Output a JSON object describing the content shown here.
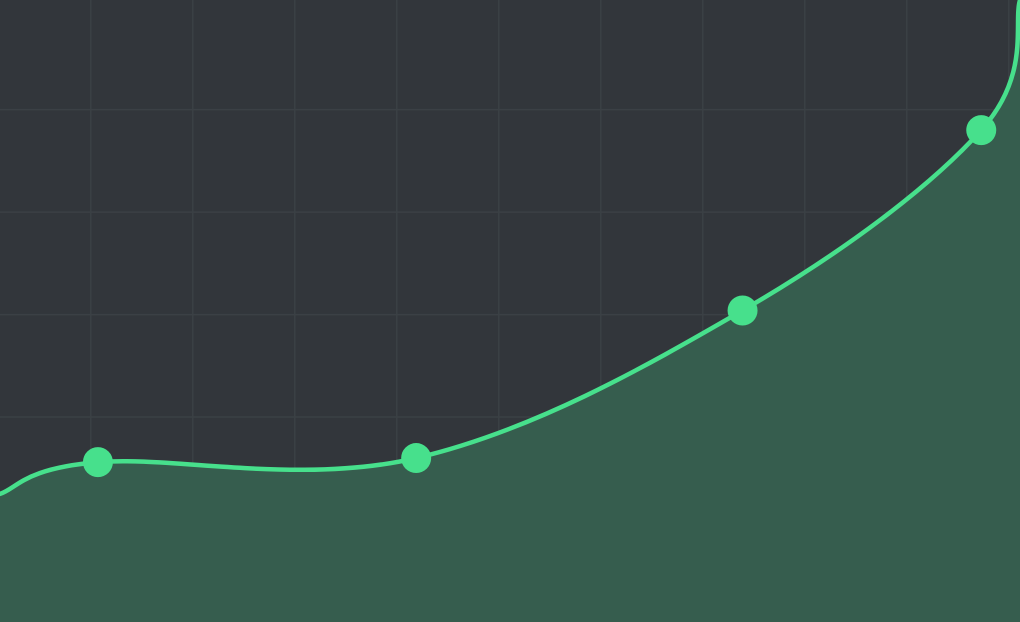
{
  "colors": {
    "background": "#32363b",
    "grid": "#3b4045",
    "line": "#47e08c",
    "area": "#365d4e",
    "point": "#47e08c"
  },
  "chart_data": {
    "type": "area",
    "title": "",
    "xlabel": "",
    "ylabel": "",
    "grid": true,
    "legend": "none",
    "curve": "smooth",
    "x": [
      0.0,
      0.96,
      4.08,
      7.28,
      9.62,
      10.0
    ],
    "y": [
      1.25,
      1.56,
      1.6,
      3.04,
      4.8,
      6.07
    ],
    "markers": [
      {
        "x": 0.96,
        "y": 1.56
      },
      {
        "x": 4.08,
        "y": 1.6
      },
      {
        "x": 7.28,
        "y": 3.04
      },
      {
        "x": 9.62,
        "y": 4.8
      }
    ],
    "xlim": [
      0,
      10
    ],
    "ylim": [
      0,
      6.07
    ],
    "x_gridlines": [
      0.89,
      1.89,
      2.89,
      3.89,
      4.89,
      5.89,
      6.89,
      7.89,
      8.89,
      9.89
    ],
    "y_gridlines": [
      0,
      1,
      2,
      3,
      4,
      5
    ]
  }
}
